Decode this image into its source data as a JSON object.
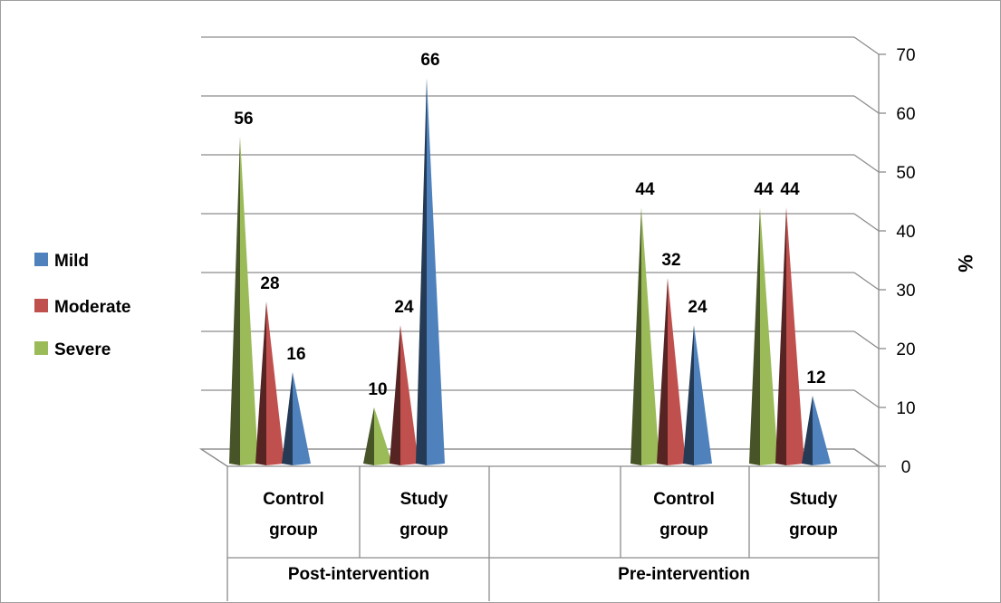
{
  "chart_data": {
    "type": "bar",
    "bar_shape": "3d-pyramid",
    "groups": [
      {
        "name": "Post-intervention",
        "categories": [
          "Control group",
          "Study group"
        ]
      },
      {
        "name": "Pre-intervention",
        "categories": [
          "Control group",
          "Study group"
        ]
      }
    ],
    "series": [
      {
        "name": "Severe",
        "color": "#9bbb59",
        "values": [
          56,
          10,
          44,
          44
        ]
      },
      {
        "name": "Moderate",
        "color": "#c0504d",
        "values": [
          28,
          24,
          32,
          44
        ]
      },
      {
        "name": "Mild",
        "color": "#4f81bd",
        "values": [
          16,
          66,
          24,
          12
        ]
      }
    ],
    "category_labels": [
      [
        "Control",
        "group"
      ],
      [
        "Study",
        "group"
      ],
      [
        "Control",
        "group"
      ],
      [
        "Study",
        "group"
      ]
    ],
    "ylabel": "%",
    "ylim": [
      0,
      70
    ],
    "yticks": [
      0,
      10,
      20,
      30,
      40,
      50,
      60,
      70
    ],
    "y_axis_side": "right",
    "grid": true,
    "legend_position": "left",
    "legend_order": [
      "Mild",
      "Moderate",
      "Severe"
    ]
  }
}
